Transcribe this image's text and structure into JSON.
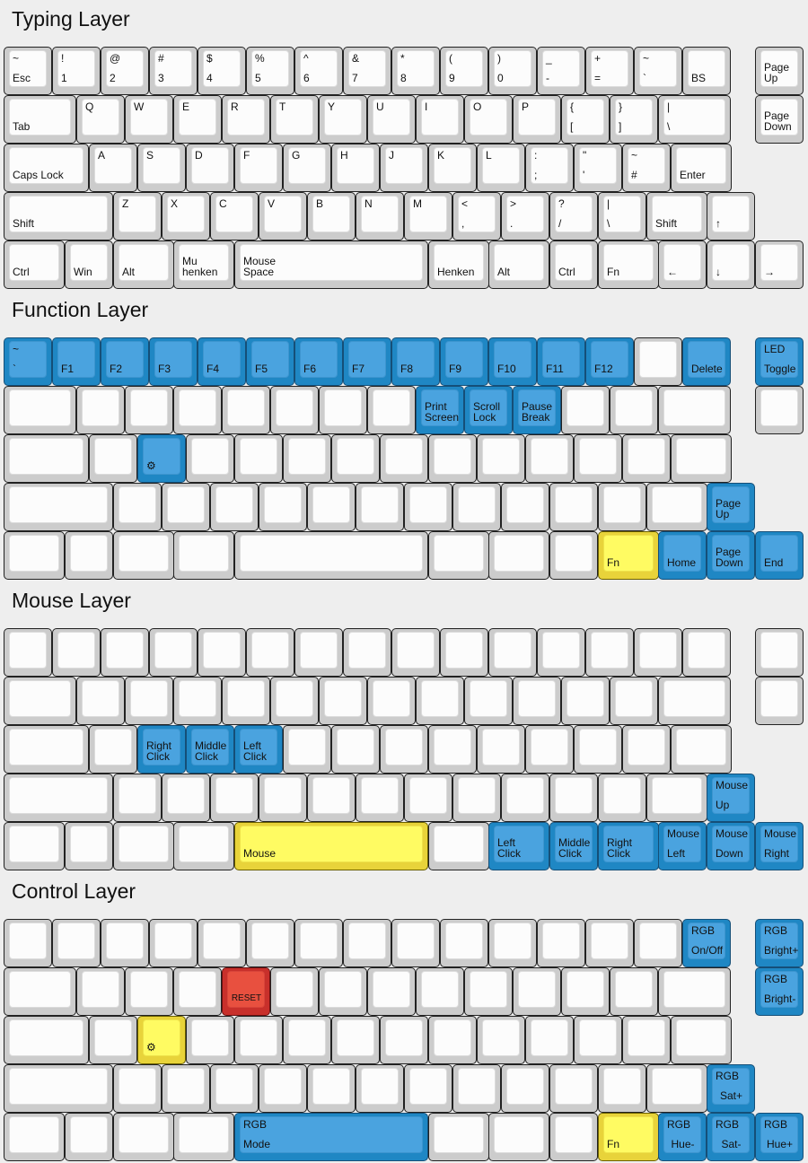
{
  "colors": {
    "blue": "#4aa3df",
    "yellow": "#fffb62",
    "red": "#e8503f",
    "plain": "#fcfcfc"
  },
  "icons": {
    "gear": "gear-icon"
  },
  "layers": [
    {
      "title": "Typing Layer",
      "rows": [
        [
          [
            "~",
            "Esc"
          ],
          [
            "!",
            "1"
          ],
          [
            "@",
            "2"
          ],
          [
            "#",
            "3"
          ],
          [
            "$",
            "4"
          ],
          [
            "%",
            "5"
          ],
          [
            "^",
            "6"
          ],
          [
            "&",
            "7"
          ],
          [
            "*",
            "8"
          ],
          [
            "(",
            "9"
          ],
          [
            ")",
            "0"
          ],
          [
            "_",
            "-"
          ],
          [
            "+",
            "="
          ],
          [
            "~",
            "`"
          ],
          [
            "",
            "BS"
          ],
          [
            "",
            "Page\nUp"
          ]
        ],
        [
          [
            "",
            "Tab"
          ],
          [
            "Q",
            ""
          ],
          [
            "W",
            ""
          ],
          [
            "E",
            ""
          ],
          [
            "R",
            ""
          ],
          [
            "T",
            ""
          ],
          [
            "Y",
            ""
          ],
          [
            "U",
            ""
          ],
          [
            "I",
            ""
          ],
          [
            "O",
            ""
          ],
          [
            "P",
            ""
          ],
          [
            "{",
            "["
          ],
          [
            "}",
            "]"
          ],
          [
            "|",
            "\\"
          ],
          [
            "",
            "Page\nDown"
          ]
        ],
        [
          [
            "",
            "Caps Lock"
          ],
          [
            "A",
            ""
          ],
          [
            "S",
            ""
          ],
          [
            "D",
            ""
          ],
          [
            "F",
            ""
          ],
          [
            "G",
            ""
          ],
          [
            "H",
            ""
          ],
          [
            "J",
            ""
          ],
          [
            "K",
            ""
          ],
          [
            "L",
            ""
          ],
          [
            ":",
            ";"
          ],
          [
            "\"",
            "'"
          ],
          [
            "~",
            "#"
          ],
          [
            "",
            "Enter"
          ]
        ],
        [
          [
            "",
            "Shift"
          ],
          [
            "Z",
            ""
          ],
          [
            "X",
            ""
          ],
          [
            "C",
            ""
          ],
          [
            "V",
            ""
          ],
          [
            "B",
            ""
          ],
          [
            "N",
            ""
          ],
          [
            "M",
            ""
          ],
          [
            "<",
            ","
          ],
          [
            ">",
            "."
          ],
          [
            "?",
            "/"
          ],
          [
            "|",
            "\\"
          ],
          [
            "",
            "Shift"
          ],
          [
            "",
            "↑"
          ]
        ],
        [
          [
            "",
            "Ctrl"
          ],
          [
            "",
            "Win"
          ],
          [
            "",
            "Alt"
          ],
          [
            "",
            "Mu\nhenken"
          ],
          [
            "",
            "Mouse\nSpace"
          ],
          [
            "",
            "Henken"
          ],
          [
            "",
            "Alt"
          ],
          [
            "",
            "Ctrl"
          ],
          [
            "",
            "Fn"
          ],
          [
            "",
            "←"
          ],
          [
            "",
            "↓"
          ],
          [
            "",
            "→"
          ]
        ]
      ]
    },
    {
      "title": "Function Layer",
      "rows": [
        [
          [
            "~",
            "`",
            "blue"
          ],
          [
            "",
            "F1",
            "blue"
          ],
          [
            "",
            "F2",
            "blue"
          ],
          [
            "",
            "F3",
            "blue"
          ],
          [
            "",
            "F4",
            "blue"
          ],
          [
            "",
            "F5",
            "blue"
          ],
          [
            "",
            "F6",
            "blue"
          ],
          [
            "",
            "F7",
            "blue"
          ],
          [
            "",
            "F8",
            "blue"
          ],
          [
            "",
            "F9",
            "blue"
          ],
          [
            "",
            "F10",
            "blue"
          ],
          [
            "",
            "F11",
            "blue"
          ],
          [
            "",
            "F12",
            "blue"
          ],
          [],
          [
            "",
            "Delete",
            "blue"
          ],
          [
            "LED",
            "Toggle",
            "blue"
          ]
        ],
        [
          [],
          [],
          [],
          [],
          [],
          [],
          [],
          [],
          [
            "",
            "Print\nScreen",
            "blue"
          ],
          [
            "",
            "Scroll\nLock",
            "blue"
          ],
          [
            "",
            "Pause\nBreak",
            "blue"
          ],
          [],
          [],
          [],
          []
        ],
        [
          [],
          [],
          [
            "",
            "⚙",
            "blue"
          ],
          [],
          [],
          [],
          [],
          [],
          [],
          [],
          [],
          [],
          [],
          []
        ],
        [
          [],
          [],
          [],
          [],
          [],
          [],
          [],
          [],
          [],
          [],
          [],
          [],
          [],
          [
            "",
            "Page\nUp",
            "blue"
          ]
        ],
        [
          [],
          [],
          [],
          [],
          [],
          [],
          [],
          [],
          [
            "",
            "Fn",
            "yellow"
          ],
          [
            "",
            "Home",
            "blue"
          ],
          [
            "",
            "Page\nDown",
            "blue"
          ],
          [
            "",
            "End",
            "blue"
          ]
        ]
      ]
    },
    {
      "title": "Mouse Layer",
      "rows": [
        [
          [],
          [],
          [],
          [],
          [],
          [],
          [],
          [],
          [],
          [],
          [],
          [],
          [],
          [],
          [],
          []
        ],
        [
          [],
          [],
          [],
          [],
          [],
          [],
          [],
          [],
          [],
          [],
          [],
          [],
          [],
          [],
          []
        ],
        [
          [],
          [],
          [
            "",
            "Right\nClick",
            "blue"
          ],
          [
            "",
            "Middle\nClick",
            "blue"
          ],
          [
            "",
            "Left\nClick",
            "blue"
          ],
          [],
          [],
          [],
          [],
          [],
          [],
          [],
          [],
          []
        ],
        [
          [],
          [],
          [],
          [],
          [],
          [],
          [],
          [],
          [],
          [],
          [],
          [],
          [],
          [
            "Mouse",
            "Up",
            "blue"
          ]
        ],
        [
          [],
          [],
          [],
          [],
          [
            "",
            "Mouse",
            "yellow"
          ],
          [],
          [
            "",
            "Left\nClick",
            "blue"
          ],
          [
            "",
            "Middle\nClick",
            "blue"
          ],
          [
            "",
            "Right\nClick",
            "blue"
          ],
          [
            "Mouse",
            "Left",
            "blue"
          ],
          [
            "Mouse",
            "Down",
            "blue"
          ],
          [
            "Mouse",
            "Right",
            "blue"
          ]
        ]
      ]
    },
    {
      "title": "Control Layer",
      "rows": [
        [
          [],
          [],
          [],
          [],
          [],
          [],
          [],
          [],
          [],
          [],
          [],
          [],
          [],
          [],
          [
            "RGB",
            "On/Off",
            "blue"
          ],
          [
            "RGB",
            "Bright+",
            "blue"
          ]
        ],
        [
          [],
          [],
          [],
          [],
          [
            "",
            "RESET",
            "red"
          ],
          [],
          [],
          [],
          [],
          [],
          [],
          [],
          [],
          [],
          [
            "RGB",
            "Bright-",
            "blue"
          ]
        ],
        [
          [],
          [],
          [
            "",
            "⚙",
            "yellow"
          ],
          [],
          [],
          [],
          [],
          [],
          [],
          [],
          [],
          [],
          [],
          []
        ],
        [
          [],
          [],
          [],
          [],
          [],
          [],
          [],
          [],
          [],
          [],
          [],
          [],
          [],
          [
            "RGB",
            "Sat+",
            "blue"
          ]
        ],
        [
          [],
          [],
          [],
          [],
          [
            "RGB",
            "Mode",
            "blue"
          ],
          [],
          [],
          [],
          [
            "",
            "Fn",
            "yellow"
          ],
          [
            "RGB",
            "Hue-",
            "blue"
          ],
          [
            "RGB",
            "Sat-",
            "blue"
          ],
          [
            "RGB",
            "Hue+",
            "blue"
          ]
        ]
      ]
    }
  ]
}
